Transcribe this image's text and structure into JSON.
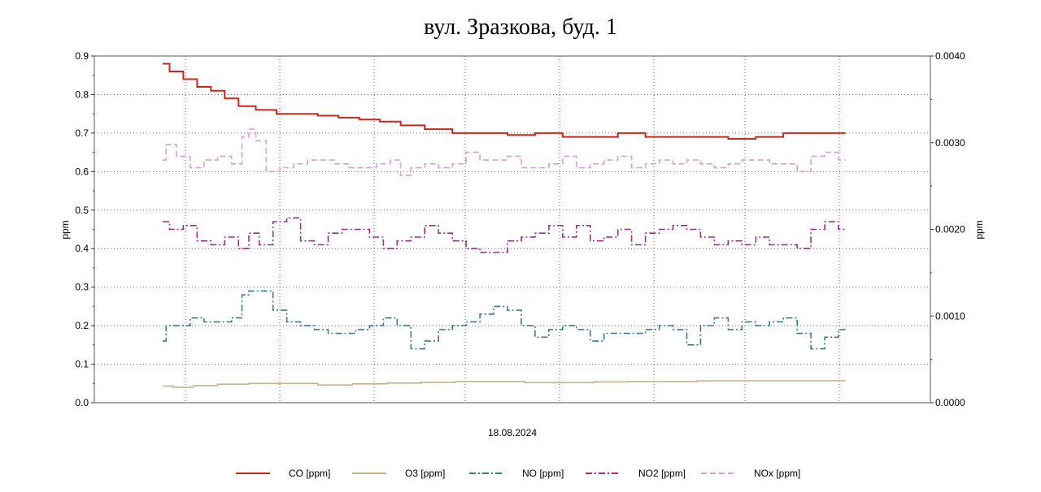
{
  "chart_data": {
    "type": "line",
    "title": "вул. Зразкова, буд. 1",
    "xlabel": "18.08.2024",
    "ylabel": "ppm",
    "ylabel_right": "ppm",
    "ylim": [
      0,
      0.9
    ],
    "ylim_right": [
      0,
      0.004
    ],
    "yticks": [
      "0.0",
      "0.1",
      "0.2",
      "0.3",
      "0.4",
      "0.5",
      "0.6",
      "0.7",
      "0.8",
      "0.9"
    ],
    "yticks_right": [
      "0.0000",
      "0.0010",
      "0.0020",
      "0.0030",
      "0.0040"
    ],
    "xlim": [
      0,
      100
    ],
    "grid": true,
    "legend_position": "bottom",
    "series": [
      {
        "name": "CO [ppm]",
        "color": "#c8281e",
        "dash": "solid",
        "x": [
          0,
          2,
          4,
          6,
          8,
          10,
          12,
          15,
          18,
          21,
          24,
          27,
          30,
          33,
          36,
          40,
          44,
          48,
          52,
          56,
          60,
          64,
          68,
          72,
          76,
          80,
          84,
          88,
          92,
          96,
          99
        ],
        "y": [
          0.88,
          0.86,
          0.84,
          0.82,
          0.81,
          0.79,
          0.77,
          0.76,
          0.75,
          0.75,
          0.745,
          0.74,
          0.735,
          0.73,
          0.72,
          0.71,
          0.7,
          0.7,
          0.695,
          0.7,
          0.69,
          0.69,
          0.7,
          0.69,
          0.69,
          0.69,
          0.685,
          0.69,
          0.7,
          0.7,
          0.7
        ]
      },
      {
        "name": "O3 [ppm]",
        "color": "#c8b088",
        "dash": "solid",
        "x": [
          0,
          3,
          6,
          10,
          15,
          20,
          25,
          30,
          35,
          40,
          45,
          50,
          55,
          60,
          65,
          70,
          75,
          80,
          85,
          90,
          95,
          99
        ],
        "y": [
          0.043,
          0.04,
          0.044,
          0.048,
          0.05,
          0.05,
          0.046,
          0.049,
          0.051,
          0.053,
          0.055,
          0.055,
          0.052,
          0.052,
          0.054,
          0.055,
          0.055,
          0.057,
          0.057,
          0.057,
          0.057,
          0.057
        ]
      },
      {
        "name": "NO [ppm]",
        "color": "#3c7896",
        "dash": "dashdot",
        "x": [
          0,
          1,
          3,
          5,
          7,
          9,
          11,
          12,
          13,
          15,
          17,
          19,
          21,
          23,
          25,
          27,
          29,
          31,
          33,
          35,
          37,
          39,
          41,
          43,
          45,
          47,
          49,
          51,
          53,
          55,
          57,
          59,
          61,
          63,
          65,
          67,
          69,
          71,
          73,
          75,
          77,
          79,
          81,
          83,
          85,
          87,
          89,
          91,
          93,
          95,
          97,
          99
        ],
        "y": [
          0.16,
          0.2,
          0.2,
          0.22,
          0.21,
          0.21,
          0.22,
          0.28,
          0.29,
          0.29,
          0.24,
          0.21,
          0.2,
          0.19,
          0.18,
          0.18,
          0.19,
          0.2,
          0.22,
          0.2,
          0.14,
          0.16,
          0.19,
          0.2,
          0.21,
          0.23,
          0.25,
          0.24,
          0.2,
          0.17,
          0.19,
          0.2,
          0.19,
          0.16,
          0.18,
          0.18,
          0.18,
          0.19,
          0.2,
          0.19,
          0.15,
          0.2,
          0.22,
          0.19,
          0.21,
          0.2,
          0.21,
          0.22,
          0.18,
          0.14,
          0.17,
          0.19
        ]
      },
      {
        "name": "NO2 [ppm]",
        "color": "#9a2f8a",
        "dash": "dashdot",
        "x": [
          0,
          2,
          4,
          6,
          8,
          10,
          12,
          13,
          15,
          17,
          19,
          21,
          23,
          25,
          27,
          29,
          31,
          33,
          35,
          37,
          39,
          41,
          43,
          45,
          47,
          49,
          51,
          53,
          55,
          57,
          59,
          61,
          63,
          65,
          67,
          69,
          71,
          73,
          75,
          77,
          79,
          81,
          83,
          85,
          87,
          89,
          91,
          93,
          95,
          97,
          99
        ],
        "y": [
          0.47,
          0.45,
          0.46,
          0.42,
          0.41,
          0.43,
          0.4,
          0.44,
          0.41,
          0.47,
          0.48,
          0.42,
          0.41,
          0.44,
          0.45,
          0.45,
          0.43,
          0.4,
          0.42,
          0.43,
          0.46,
          0.44,
          0.42,
          0.4,
          0.39,
          0.39,
          0.42,
          0.43,
          0.44,
          0.46,
          0.43,
          0.46,
          0.42,
          0.43,
          0.45,
          0.41,
          0.44,
          0.45,
          0.46,
          0.45,
          0.43,
          0.41,
          0.42,
          0.41,
          0.43,
          0.41,
          0.41,
          0.4,
          0.45,
          0.47,
          0.45
        ]
      },
      {
        "name": "NOx [ppm]",
        "color": "#d8a0d4",
        "dash": "dashed",
        "x": [
          0,
          1,
          3,
          5,
          7,
          9,
          11,
          12,
          13,
          14,
          16,
          18,
          20,
          22,
          24,
          26,
          28,
          30,
          32,
          34,
          35,
          37,
          39,
          41,
          43,
          45,
          47,
          49,
          51,
          53,
          55,
          57,
          59,
          61,
          63,
          65,
          67,
          69,
          71,
          73,
          75,
          77,
          79,
          81,
          83,
          85,
          87,
          89,
          91,
          93,
          95,
          97,
          99
        ],
        "y": [
          0.63,
          0.67,
          0.64,
          0.61,
          0.63,
          0.64,
          0.62,
          0.69,
          0.71,
          0.68,
          0.6,
          0.61,
          0.62,
          0.63,
          0.63,
          0.62,
          0.61,
          0.61,
          0.62,
          0.63,
          0.59,
          0.61,
          0.62,
          0.61,
          0.62,
          0.65,
          0.63,
          0.63,
          0.64,
          0.61,
          0.61,
          0.62,
          0.64,
          0.61,
          0.62,
          0.63,
          0.64,
          0.61,
          0.62,
          0.63,
          0.62,
          0.63,
          0.62,
          0.61,
          0.62,
          0.63,
          0.63,
          0.62,
          0.62,
          0.6,
          0.64,
          0.65,
          0.63
        ]
      }
    ]
  }
}
